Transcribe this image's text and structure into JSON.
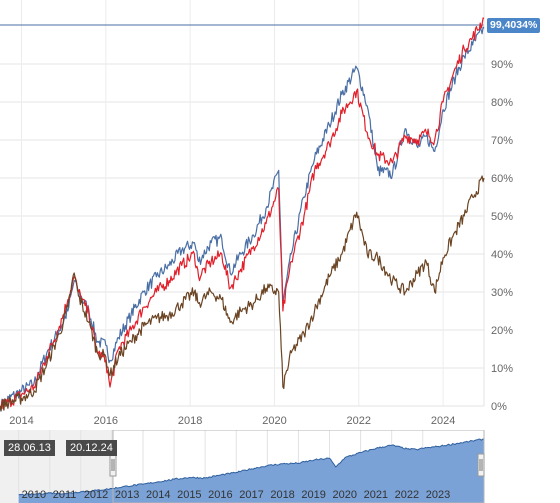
{
  "chart_data": {
    "type": "line",
    "x_tick_labels": [
      "2014",
      "2016",
      "2018",
      "2020",
      "2022",
      "2024"
    ],
    "y_tick_labels": [
      "0%",
      "10%",
      "20%",
      "30%",
      "40%",
      "50%",
      "60%",
      "70%",
      "80%",
      "90%"
    ],
    "ylim": [
      0,
      105
    ],
    "xlim": [
      2013.49,
      2024.97
    ],
    "grid": true,
    "last_value_label": "99,4034%",
    "series": [
      {
        "color": "#4a6fa5",
        "points": [
          [
            2013.49,
            0
          ],
          [
            2013.7,
            2
          ],
          [
            2014.0,
            4
          ],
          [
            2014.3,
            6
          ],
          [
            2014.6,
            14
          ],
          [
            2014.9,
            20
          ],
          [
            2015.1,
            25
          ],
          [
            2015.25,
            33
          ],
          [
            2015.35,
            30
          ],
          [
            2015.6,
            25
          ],
          [
            2015.8,
            17
          ],
          [
            2016.0,
            16
          ],
          [
            2016.1,
            12
          ],
          [
            2016.3,
            18
          ],
          [
            2016.6,
            24
          ],
          [
            2016.9,
            30
          ],
          [
            2017.2,
            34
          ],
          [
            2017.5,
            37
          ],
          [
            2017.8,
            41
          ],
          [
            2018.1,
            43
          ],
          [
            2018.2,
            38
          ],
          [
            2018.5,
            43
          ],
          [
            2018.75,
            44
          ],
          [
            2018.95,
            35
          ],
          [
            2019.2,
            40
          ],
          [
            2019.5,
            45
          ],
          [
            2019.8,
            52
          ],
          [
            2020.1,
            62
          ],
          [
            2020.2,
            27
          ],
          [
            2020.4,
            40
          ],
          [
            2020.7,
            55
          ],
          [
            2020.95,
            65
          ],
          [
            2021.3,
            74
          ],
          [
            2021.6,
            82
          ],
          [
            2021.95,
            89
          ],
          [
            2022.2,
            79
          ],
          [
            2022.45,
            62
          ],
          [
            2022.8,
            61
          ],
          [
            2023.1,
            73
          ],
          [
            2023.4,
            68
          ],
          [
            2023.6,
            71
          ],
          [
            2023.8,
            67
          ],
          [
            2024.0,
            78
          ],
          [
            2024.3,
            87
          ],
          [
            2024.5,
            92
          ],
          [
            2024.7,
            95
          ],
          [
            2024.97,
            99.4
          ]
        ]
      },
      {
        "color": "#e0202a",
        "points": [
          [
            2013.49,
            0
          ],
          [
            2013.7,
            1
          ],
          [
            2014.0,
            3
          ],
          [
            2014.3,
            5
          ],
          [
            2014.6,
            13
          ],
          [
            2014.9,
            21
          ],
          [
            2015.1,
            28
          ],
          [
            2015.25,
            34
          ],
          [
            2015.35,
            30
          ],
          [
            2015.6,
            24
          ],
          [
            2015.8,
            14
          ],
          [
            2016.0,
            12
          ],
          [
            2016.1,
            5
          ],
          [
            2016.3,
            15
          ],
          [
            2016.6,
            20
          ],
          [
            2016.9,
            26
          ],
          [
            2017.2,
            30
          ],
          [
            2017.5,
            33
          ],
          [
            2017.8,
            37
          ],
          [
            2018.1,
            40
          ],
          [
            2018.2,
            34
          ],
          [
            2018.5,
            38
          ],
          [
            2018.75,
            40
          ],
          [
            2018.95,
            31
          ],
          [
            2019.2,
            36
          ],
          [
            2019.5,
            42
          ],
          [
            2019.8,
            48
          ],
          [
            2020.1,
            57
          ],
          [
            2020.2,
            25
          ],
          [
            2020.4,
            38
          ],
          [
            2020.7,
            50
          ],
          [
            2020.95,
            62
          ],
          [
            2021.3,
            69
          ],
          [
            2021.6,
            77
          ],
          [
            2021.95,
            83
          ],
          [
            2022.2,
            72
          ],
          [
            2022.45,
            66
          ],
          [
            2022.8,
            64
          ],
          [
            2023.1,
            71
          ],
          [
            2023.4,
            70
          ],
          [
            2023.6,
            72
          ],
          [
            2023.8,
            70
          ],
          [
            2024.0,
            80
          ],
          [
            2024.3,
            89
          ],
          [
            2024.5,
            94
          ],
          [
            2024.7,
            97
          ],
          [
            2024.97,
            102
          ]
        ]
      },
      {
        "color": "#6b4423",
        "points": [
          [
            2013.49,
            0
          ],
          [
            2013.7,
            1
          ],
          [
            2014.0,
            2
          ],
          [
            2014.3,
            4
          ],
          [
            2014.6,
            11
          ],
          [
            2014.9,
            19
          ],
          [
            2015.1,
            26
          ],
          [
            2015.25,
            35
          ],
          [
            2015.35,
            29
          ],
          [
            2015.6,
            22
          ],
          [
            2015.8,
            14
          ],
          [
            2016.0,
            13
          ],
          [
            2016.1,
            8
          ],
          [
            2016.3,
            13
          ],
          [
            2016.6,
            17
          ],
          [
            2016.9,
            21
          ],
          [
            2017.2,
            23
          ],
          [
            2017.5,
            24
          ],
          [
            2017.8,
            27
          ],
          [
            2018.1,
            30
          ],
          [
            2018.2,
            27
          ],
          [
            2018.5,
            30
          ],
          [
            2018.75,
            28
          ],
          [
            2018.95,
            22
          ],
          [
            2019.2,
            25
          ],
          [
            2019.5,
            27
          ],
          [
            2019.8,
            31
          ],
          [
            2020.1,
            30
          ],
          [
            2020.2,
            5
          ],
          [
            2020.4,
            14
          ],
          [
            2020.7,
            19
          ],
          [
            2020.95,
            25
          ],
          [
            2021.3,
            34
          ],
          [
            2021.6,
            40
          ],
          [
            2021.95,
            51
          ],
          [
            2022.2,
            40
          ],
          [
            2022.45,
            39
          ],
          [
            2022.8,
            33
          ],
          [
            2023.1,
            30
          ],
          [
            2023.4,
            35
          ],
          [
            2023.6,
            38
          ],
          [
            2023.8,
            30
          ],
          [
            2024.0,
            39
          ],
          [
            2024.3,
            46
          ],
          [
            2024.5,
            50
          ],
          [
            2024.7,
            55
          ],
          [
            2024.97,
            60
          ]
        ]
      }
    ],
    "navigator": {
      "tick_labels": [
        "2010",
        "2011",
        "2012",
        "2013",
        "2014",
        "2015",
        "2016",
        "2017",
        "2018",
        "2019",
        "2020",
        "2021",
        "2022",
        "2023"
      ],
      "range_start_label": "28.06.13",
      "range_end_label": "20.12.24",
      "fill_color": "#7ba2d6",
      "line_color": "#2f5f9e",
      "points": [
        [
          2010.0,
          10
        ],
        [
          2010.5,
          11
        ],
        [
          2011.0,
          13
        ],
        [
          2011.5,
          12
        ],
        [
          2012.0,
          15
        ],
        [
          2012.5,
          17
        ],
        [
          2013.0,
          20
        ],
        [
          2013.5,
          24
        ],
        [
          2014.0,
          27
        ],
        [
          2014.5,
          31
        ],
        [
          2015.0,
          35
        ],
        [
          2015.5,
          38
        ],
        [
          2016.0,
          37
        ],
        [
          2016.5,
          42
        ],
        [
          2017.0,
          46
        ],
        [
          2017.5,
          52
        ],
        [
          2018.0,
          57
        ],
        [
          2018.5,
          60
        ],
        [
          2019.0,
          61
        ],
        [
          2019.5,
          66
        ],
        [
          2020.0,
          69
        ],
        [
          2020.2,
          55
        ],
        [
          2020.5,
          70
        ],
        [
          2021.0,
          78
        ],
        [
          2021.5,
          85
        ],
        [
          2022.0,
          90
        ],
        [
          2022.5,
          84
        ],
        [
          2022.8,
          83
        ],
        [
          2023.0,
          85
        ],
        [
          2023.5,
          88
        ],
        [
          2024.0,
          92
        ],
        [
          2024.5,
          96
        ],
        [
          2024.97,
          100
        ]
      ]
    }
  }
}
